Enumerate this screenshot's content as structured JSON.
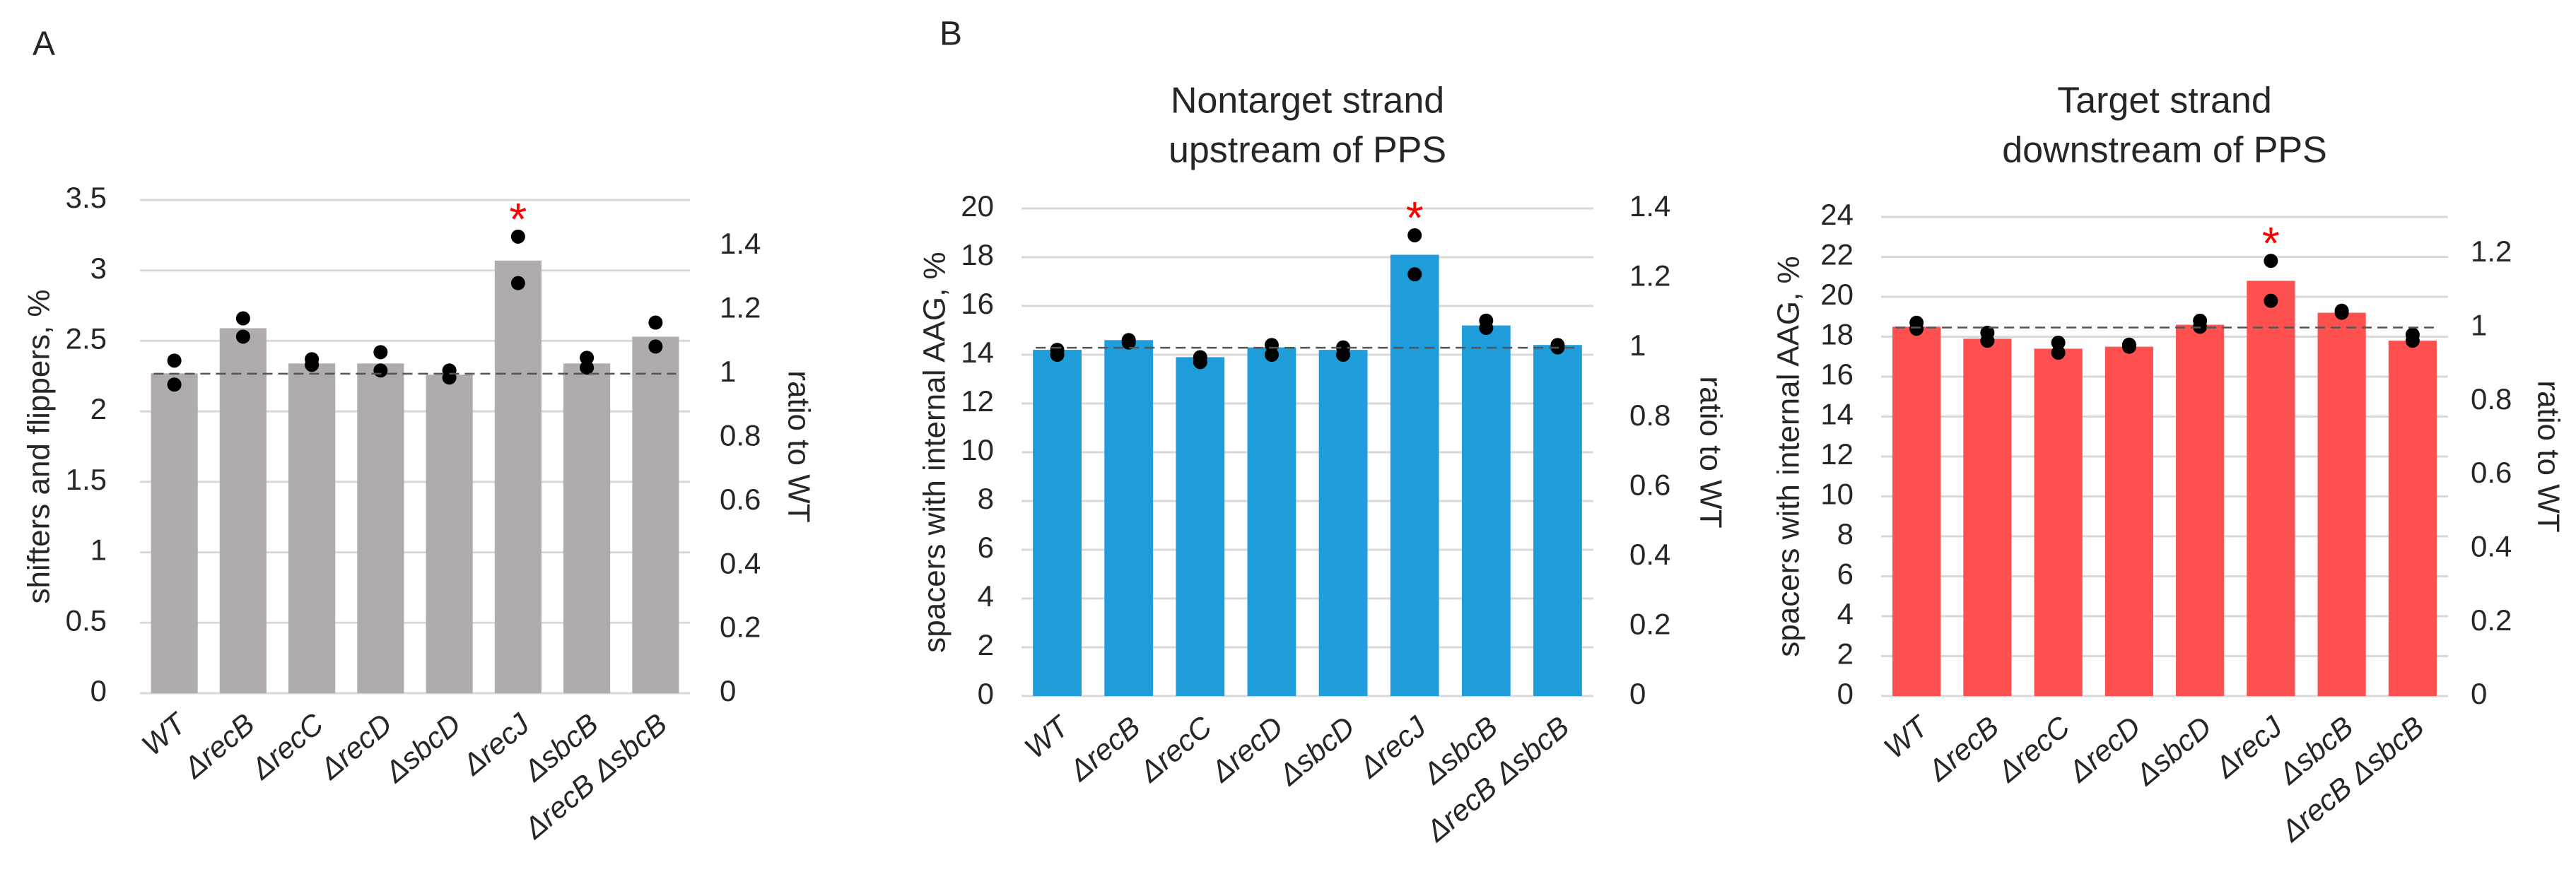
{
  "chart_data": [
    {
      "type": "bar",
      "panel_label": "A",
      "ylabel": "shifters and flippers, %",
      "y2label": "ratio to WT",
      "categories": [
        "WT",
        "ΔrecB",
        "ΔrecC",
        "ΔrecD",
        "ΔsbcD",
        "ΔrecJ",
        "ΔsbcB",
        "ΔrecB ΔsbcB"
      ],
      "values": [
        2.27,
        2.59,
        2.34,
        2.34,
        2.26,
        3.07,
        2.34,
        2.53
      ],
      "points": [
        [
          2.36,
          2.19
        ],
        [
          2.66,
          2.53
        ],
        [
          2.37,
          2.33
        ],
        [
          2.42,
          2.29
        ],
        [
          2.29,
          2.24
        ],
        [
          3.24,
          2.91
        ],
        [
          2.38,
          2.31
        ],
        [
          2.63,
          2.46
        ]
      ],
      "color": "#b0acab",
      "ylim": [
        0,
        3.5
      ],
      "yticks": [
        0,
        0.5,
        1,
        1.5,
        2,
        2.5,
        3,
        3.5
      ],
      "y2lim": [
        0,
        1.544
      ],
      "y2ticks": [
        0,
        0.2,
        0.4,
        0.6,
        0.8,
        1,
        1.2,
        1.4
      ],
      "reference_line": {
        "value": 1,
        "axis": "y2"
      },
      "annotations": [
        {
          "text": "*",
          "category": "ΔrecJ",
          "color": "#ff0000"
        }
      ],
      "grid": true
    },
    {
      "type": "bar",
      "panel_label": "B",
      "title": [
        "Nontarget strand",
        "upstream of PPS"
      ],
      "ylabel": "spacers with internal AAG, %",
      "y2label": "ratio to WT",
      "categories": [
        "WT",
        "ΔrecB",
        "ΔrecC",
        "ΔrecD",
        "ΔsbcD",
        "ΔrecJ",
        "ΔsbcB",
        "ΔrecB ΔsbcB"
      ],
      "values": [
        14.2,
        14.6,
        13.9,
        14.3,
        14.2,
        18.1,
        15.2,
        14.4
      ],
      "points": [
        [
          14.2,
          14.0
        ],
        [
          14.6,
          14.5
        ],
        [
          13.9,
          13.7
        ],
        [
          14.4,
          14.0
        ],
        [
          14.3,
          14.0
        ],
        [
          18.9,
          17.3
        ],
        [
          15.4,
          15.1
        ],
        [
          14.4,
          14.3
        ]
      ],
      "color": "#1f9ddb",
      "ylim": [
        0,
        20
      ],
      "yticks": [
        0,
        2,
        4,
        6,
        8,
        10,
        12,
        14,
        16,
        18,
        20
      ],
      "y2lim": [
        0,
        1.4
      ],
      "y2ticks": [
        0,
        0.2,
        0.4,
        0.6,
        0.8,
        1,
        1.2,
        1.4
      ],
      "reference_line": {
        "value": 1,
        "axis": "y2"
      },
      "annotations": [
        {
          "text": "*",
          "category": "ΔrecJ",
          "color": "#ff0000"
        }
      ],
      "grid": true
    },
    {
      "type": "bar",
      "title": [
        "Target strand",
        "downstream of PPS"
      ],
      "ylabel": "spacers with internal AAG, %",
      "y2label": "ratio to WT",
      "categories": [
        "WT",
        "ΔrecB",
        "ΔrecC",
        "ΔrecD",
        "ΔsbcD",
        "ΔrecJ",
        "ΔsbcB",
        "ΔrecB ΔsbcB"
      ],
      "values": [
        18.5,
        17.9,
        17.4,
        17.5,
        18.6,
        20.8,
        19.2,
        17.8
      ],
      "points": [
        [
          18.7,
          18.4
        ],
        [
          18.2,
          17.8
        ],
        [
          17.7,
          17.2
        ],
        [
          17.6,
          17.5
        ],
        [
          18.8,
          18.5
        ],
        [
          21.8,
          19.8
        ],
        [
          19.3,
          19.2
        ],
        [
          18.1,
          17.8
        ]
      ],
      "color": "#ff5050",
      "ylim": [
        0,
        24
      ],
      "yticks": [
        0,
        2,
        4,
        6,
        8,
        10,
        12,
        14,
        16,
        18,
        20,
        22,
        24
      ],
      "y2lim": [
        0,
        1.3
      ],
      "y2ticks": [
        0,
        0.2,
        0.4,
        0.6,
        0.8,
        1,
        1.2
      ],
      "reference_line": {
        "value": 1,
        "axis": "y2"
      },
      "annotations": [
        {
          "text": "*",
          "category": "ΔrecJ",
          "color": "#ff0000"
        }
      ],
      "grid": true
    }
  ]
}
